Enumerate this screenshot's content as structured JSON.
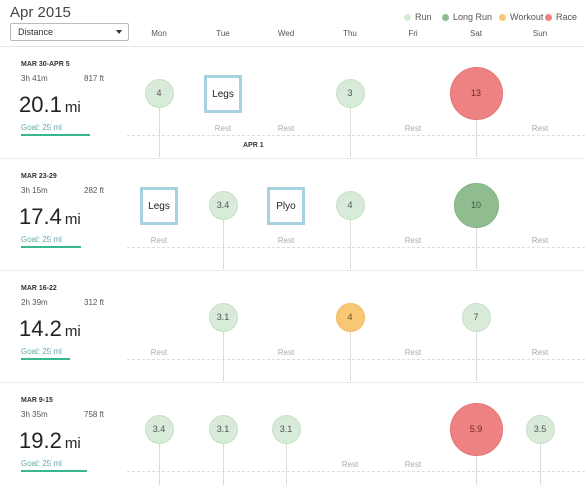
{
  "header": {
    "month_title": "Apr 2015",
    "metric_select": {
      "value": "Distance"
    }
  },
  "legend": [
    {
      "label": "Run",
      "color": "#d8ead8"
    },
    {
      "label": "Long Run",
      "color": "#8fbd8f"
    },
    {
      "label": "Workout",
      "color": "#f8c774"
    },
    {
      "label": "Race",
      "color": "#ee8282"
    }
  ],
  "days": [
    "Mon",
    "Tue",
    "Wed",
    "Thu",
    "Fri",
    "Sat",
    "Sun"
  ],
  "rest_label": "Rest",
  "month_marker": "APR 1",
  "weeks": [
    {
      "range": "MAR 30-APR 5",
      "time": "3h 41m",
      "elevation": "817 ft",
      "distance": "20.1",
      "unit": "mi",
      "goal": "Goal: 25 mi",
      "goal_progress": 0.8,
      "days": [
        {
          "type": "run",
          "label": "4"
        },
        {
          "type": "workout-box",
          "label": "Legs",
          "rest_below": true
        },
        {
          "type": "rest"
        },
        {
          "type": "run",
          "label": "3"
        },
        {
          "type": "rest"
        },
        {
          "type": "race",
          "label": "13"
        },
        {
          "type": "rest"
        }
      ]
    },
    {
      "range": "MAR 23-29",
      "time": "3h 15m",
      "elevation": "282 ft",
      "distance": "17.4",
      "unit": "mi",
      "goal": "Goal: 25 mi",
      "goal_progress": 0.7,
      "days": [
        {
          "type": "workout-box",
          "label": "Legs",
          "rest_below": true
        },
        {
          "type": "run",
          "label": "3.4"
        },
        {
          "type": "workout-box",
          "label": "Plyo",
          "rest_below": true
        },
        {
          "type": "run",
          "label": "4"
        },
        {
          "type": "rest"
        },
        {
          "type": "long",
          "label": "10"
        },
        {
          "type": "rest"
        }
      ]
    },
    {
      "range": "MAR 16-22",
      "time": "2h 39m",
      "elevation": "312 ft",
      "distance": "14.2",
      "unit": "mi",
      "goal": "Goal: 25 mi",
      "goal_progress": 0.57,
      "days": [
        {
          "type": "rest"
        },
        {
          "type": "run",
          "label": "3.1"
        },
        {
          "type": "rest"
        },
        {
          "type": "workout",
          "label": "4"
        },
        {
          "type": "rest"
        },
        {
          "type": "run",
          "label": "7"
        },
        {
          "type": "rest"
        }
      ]
    },
    {
      "range": "MAR 9-15",
      "time": "3h 35m",
      "elevation": "758 ft",
      "distance": "19.2",
      "unit": "mi",
      "goal": "Goal: 25 mi",
      "goal_progress": 0.77,
      "days": [
        {
          "type": "run",
          "label": "3.4"
        },
        {
          "type": "run",
          "label": "3.1"
        },
        {
          "type": "run",
          "label": "3.1"
        },
        {
          "type": "rest"
        },
        {
          "type": "rest"
        },
        {
          "type": "race",
          "label": "5.9"
        },
        {
          "type": "run",
          "label": "3.5"
        }
      ]
    }
  ]
}
